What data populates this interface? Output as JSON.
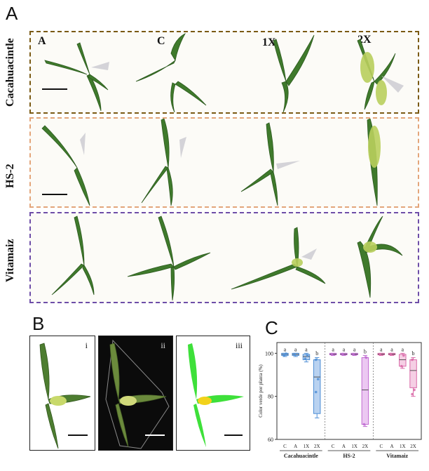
{
  "panel_a": {
    "letter": "A",
    "columns": [
      "A",
      "C",
      "1X",
      "2X"
    ],
    "rows": [
      {
        "label": "Cacahuacintle",
        "color": "#7a5a14"
      },
      {
        "label": "HS-2",
        "color": "#e3a57a"
      },
      {
        "label": "Vitamaiz",
        "color": "#6e4ea8"
      }
    ]
  },
  "panel_b": {
    "letter": "B",
    "sub_labels": [
      "i",
      "ii",
      "iii"
    ]
  },
  "panel_c": {
    "letter": "C"
  },
  "chart_data": {
    "type": "box",
    "ylabel": "Color verde por planta (%)",
    "ylim": [
      60,
      105
    ],
    "yticks": [
      "60",
      "80",
      "100"
    ],
    "group_tick_labels": [
      "C",
      "A",
      "1X",
      "2X"
    ],
    "groups": [
      {
        "name": "Cacahuacintle",
        "color": "#4f8fd6",
        "fill": "#b9d2f0",
        "boxes": [
          {
            "tick": "C",
            "letter": "a",
            "min": 98.5,
            "q1": 99,
            "median": 99.5,
            "q3": 100,
            "max": 100,
            "points": [
              99.2,
              99.8
            ]
          },
          {
            "tick": "A",
            "letter": "a",
            "min": 98.5,
            "q1": 99,
            "median": 99.5,
            "q3": 100,
            "max": 100,
            "points": [
              99.4
            ]
          },
          {
            "tick": "1X",
            "letter": "a",
            "min": 96,
            "q1": 97,
            "median": 98.5,
            "q3": 99.5,
            "max": 100,
            "points": [
              97.5,
              99
            ]
          },
          {
            "tick": "2X",
            "letter": "b",
            "min": 70,
            "q1": 72,
            "median": 89,
            "q3": 97,
            "max": 98,
            "points": [
              82,
              88,
              97
            ]
          }
        ]
      },
      {
        "name": "HS-2",
        "color": "#c06bd1",
        "fill": "#ecc8f2",
        "boxes": [
          {
            "tick": "C",
            "letter": "a",
            "min": 99,
            "q1": 99.3,
            "median": 99.6,
            "q3": 100,
            "max": 100,
            "points": [
              99.5
            ]
          },
          {
            "tick": "A",
            "letter": "a",
            "min": 99,
            "q1": 99.3,
            "median": 99.6,
            "q3": 100,
            "max": 100,
            "points": [
              99.6
            ]
          },
          {
            "tick": "1X",
            "letter": "a",
            "min": 99,
            "q1": 99.3,
            "median": 99.6,
            "q3": 100,
            "max": 100,
            "points": [
              99.4
            ]
          },
          {
            "tick": "2X",
            "letter": "b",
            "min": 66,
            "q1": 67,
            "median": 83,
            "q3": 98,
            "max": 99,
            "points": [
              67,
              98
            ]
          }
        ]
      },
      {
        "name": "Vitamaiz",
        "color": "#d96aa8",
        "fill": "#f5cfe4",
        "boxes": [
          {
            "tick": "C",
            "letter": "a",
            "min": 99,
            "q1": 99.3,
            "median": 99.6,
            "q3": 100,
            "max": 100,
            "points": [
              99.5
            ]
          },
          {
            "tick": "A",
            "letter": "a",
            "min": 99,
            "q1": 99.3,
            "median": 99.6,
            "q3": 100,
            "max": 100,
            "points": [
              99.6
            ]
          },
          {
            "tick": "1X",
            "letter": "a",
            "min": 93,
            "q1": 94,
            "median": 97,
            "q3": 99.5,
            "max": 100,
            "points": [
              94,
              99
            ]
          },
          {
            "tick": "2X",
            "letter": "b",
            "min": 80,
            "q1": 84,
            "median": 92,
            "q3": 97,
            "max": 98,
            "points": [
              81,
              83,
              97
            ]
          }
        ]
      }
    ]
  }
}
